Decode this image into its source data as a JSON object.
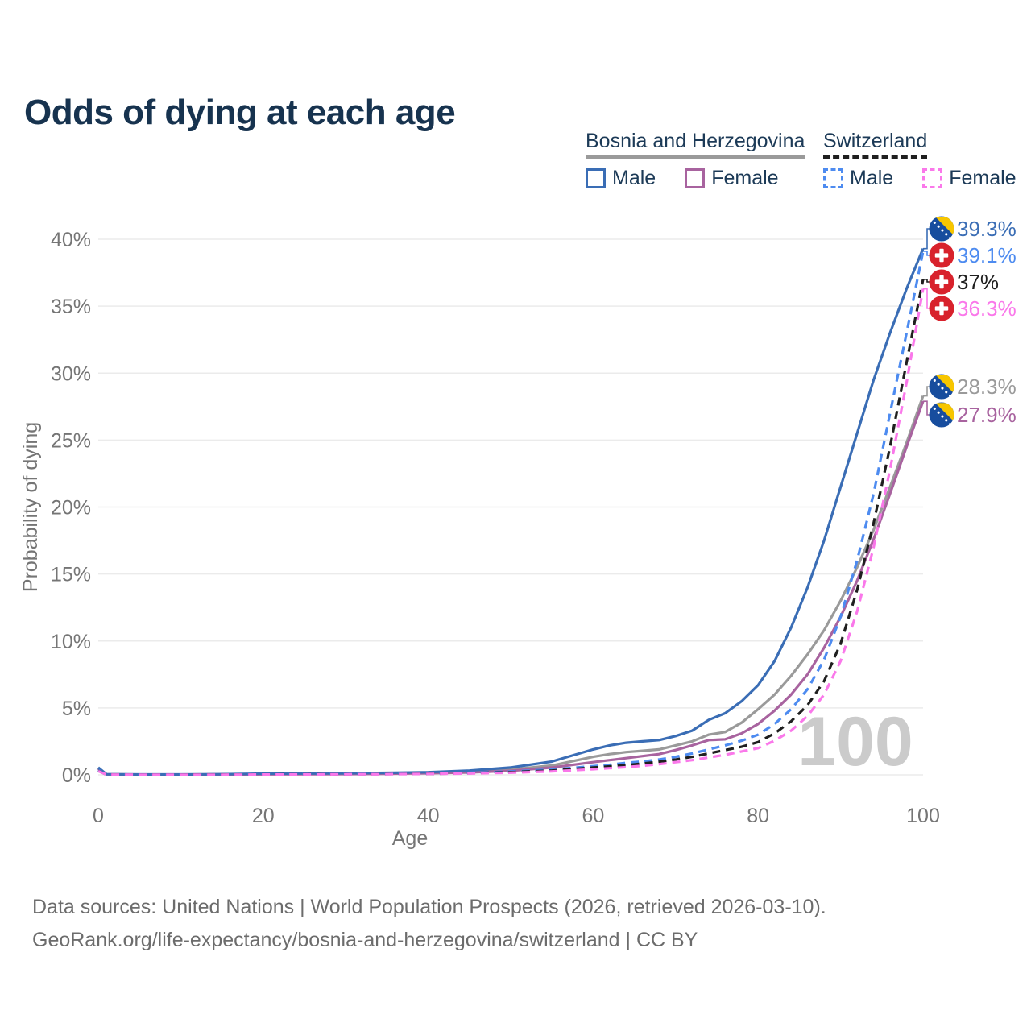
{
  "header": {
    "title": "Odds of dying at each age"
  },
  "legend": {
    "groups": [
      {
        "name": "Bosnia and Herzegovina",
        "line_style": "solid",
        "items": [
          {
            "label": "Male",
            "color": "#3a6db5",
            "dash": false
          },
          {
            "label": "Female",
            "color": "#a8639f",
            "dash": false
          }
        ]
      },
      {
        "name": "Switzerland",
        "line_style": "dashed",
        "items": [
          {
            "label": "Male",
            "color": "#4d8bf0",
            "dash": true
          },
          {
            "label": "Female",
            "color": "#fa78ea",
            "dash": true
          }
        ]
      }
    ]
  },
  "chart_data": {
    "type": "line",
    "title": "Odds of dying at each age",
    "xlabel": "Age",
    "ylabel": "Probability of dying",
    "xlim": [
      0,
      100
    ],
    "ylim": [
      0,
      40
    ],
    "grid": "horizontal",
    "legend_position": "top-right",
    "watermark": "100",
    "x_ticks": [
      {
        "label": "0",
        "value": 0
      },
      {
        "label": "20",
        "value": 20
      },
      {
        "label": "40",
        "value": 40
      },
      {
        "label": "60",
        "value": 60
      },
      {
        "label": "80",
        "value": 80
      },
      {
        "label": "100",
        "value": 100
      }
    ],
    "y_ticks": [
      {
        "label": "0%",
        "value": 0
      },
      {
        "label": "5%",
        "value": 5
      },
      {
        "label": "10%",
        "value": 10
      },
      {
        "label": "15%",
        "value": 15
      },
      {
        "label": "20%",
        "value": 20
      },
      {
        "label": "25%",
        "value": 25
      },
      {
        "label": "30%",
        "value": 30
      },
      {
        "label": "35%",
        "value": 35
      },
      {
        "label": "40%",
        "value": 40
      }
    ],
    "x": [
      0,
      1,
      5,
      10,
      15,
      20,
      25,
      30,
      35,
      40,
      45,
      50,
      55,
      60,
      62,
      64,
      66,
      68,
      70,
      72,
      74,
      76,
      78,
      80,
      82,
      84,
      86,
      88,
      90,
      92,
      94,
      96,
      98,
      100
    ],
    "series": [
      {
        "id": "ba-total",
        "name": "Bosnia and Herzegovina Total",
        "color": "#9a9a9a",
        "dash": "solid",
        "flag": "bosnia-and-herzegovina",
        "end_label": "28.3%",
        "values": [
          0.5,
          0.04,
          0.02,
          0.02,
          0.04,
          0.06,
          0.07,
          0.09,
          0.11,
          0.15,
          0.23,
          0.4,
          0.7,
          1.35,
          1.55,
          1.7,
          1.8,
          1.9,
          2.2,
          2.5,
          3.0,
          3.2,
          3.9,
          4.9,
          6.0,
          7.4,
          9.0,
          10.8,
          13.0,
          15.5,
          18.3,
          21.5,
          24.8,
          28.3
        ]
      },
      {
        "id": "ba-female",
        "name": "Bosnia and Herzegovina Female",
        "color": "#a8639f",
        "dash": "solid",
        "flag": "bosnia-and-herzegovina",
        "end_label": "27.9%",
        "values": [
          0.45,
          0.04,
          0.02,
          0.02,
          0.03,
          0.04,
          0.05,
          0.06,
          0.08,
          0.12,
          0.18,
          0.3,
          0.55,
          0.95,
          1.1,
          1.25,
          1.4,
          1.55,
          1.85,
          2.2,
          2.6,
          2.65,
          3.1,
          3.8,
          4.8,
          6.0,
          7.5,
          9.5,
          11.8,
          14.5,
          17.6,
          21.0,
          24.5,
          27.9
        ]
      },
      {
        "id": "ba-male",
        "name": "Bosnia and Herzegovina Male",
        "color": "#3a6db5",
        "dash": "solid",
        "flag": "bosnia-and-herzegovina",
        "end_label": "39.3%",
        "values": [
          0.55,
          0.05,
          0.03,
          0.03,
          0.05,
          0.09,
          0.1,
          0.12,
          0.15,
          0.2,
          0.32,
          0.55,
          1.0,
          1.9,
          2.2,
          2.4,
          2.5,
          2.6,
          2.9,
          3.3,
          4.1,
          4.6,
          5.5,
          6.7,
          8.5,
          11.0,
          14.0,
          17.5,
          21.5,
          25.5,
          29.5,
          33.0,
          36.3,
          39.3
        ]
      },
      {
        "id": "ch-male",
        "name": "Switzerland Male",
        "color": "#4d8bf0",
        "dash": "dashed",
        "flag": "switzerland",
        "end_label": "39.1%",
        "values": [
          0.35,
          0.02,
          0.01,
          0.01,
          0.02,
          0.05,
          0.06,
          0.07,
          0.08,
          0.1,
          0.15,
          0.25,
          0.4,
          0.65,
          0.75,
          0.9,
          1.0,
          1.15,
          1.35,
          1.6,
          1.9,
          2.2,
          2.55,
          3.0,
          3.8,
          4.9,
          6.4,
          8.6,
          11.8,
          16.0,
          21.0,
          27.0,
          33.0,
          39.1
        ]
      },
      {
        "id": "ch-total",
        "name": "Switzerland Total",
        "color": "#1f1f1f",
        "dash": "dashed",
        "flag": "switzerland",
        "end_label": "37%",
        "values": [
          0.3,
          0.02,
          0.01,
          0.01,
          0.02,
          0.03,
          0.04,
          0.05,
          0.06,
          0.08,
          0.12,
          0.2,
          0.32,
          0.55,
          0.63,
          0.73,
          0.85,
          0.98,
          1.15,
          1.35,
          1.6,
          1.85,
          2.1,
          2.45,
          3.1,
          4.0,
          5.2,
          7.0,
          9.8,
          13.8,
          18.8,
          24.5,
          30.8,
          37.0
        ]
      },
      {
        "id": "ch-female",
        "name": "Switzerland Female",
        "color": "#fa78ea",
        "dash": "dashed",
        "flag": "switzerland",
        "end_label": "36.3%",
        "values": [
          0.28,
          0.02,
          0.01,
          0.01,
          0.015,
          0.025,
          0.03,
          0.04,
          0.05,
          0.07,
          0.1,
          0.16,
          0.26,
          0.42,
          0.5,
          0.58,
          0.68,
          0.8,
          0.95,
          1.1,
          1.3,
          1.5,
          1.75,
          2.0,
          2.55,
          3.3,
          4.4,
          6.0,
          8.5,
          12.2,
          17.0,
          22.8,
          29.3,
          36.3
        ]
      }
    ]
  },
  "footer": {
    "line1": "Data sources: United Nations | World Population Prospects (2026, retrieved 2026-03-10).",
    "line2": "GeoRank.org/life-expectancy/bosnia-and-herzegovina/switzerland | CC BY"
  },
  "colors": {
    "title": "#17334f",
    "axis_text": "#757575",
    "gridline": "#ebebeb",
    "watermark": "#cbcbcb",
    "footer_text": "#6c6c6c",
    "bosnia_flag_blue": "#174d9e",
    "bosnia_flag_yellow": "#f7c600",
    "swiss_flag_red": "#d8222c"
  }
}
